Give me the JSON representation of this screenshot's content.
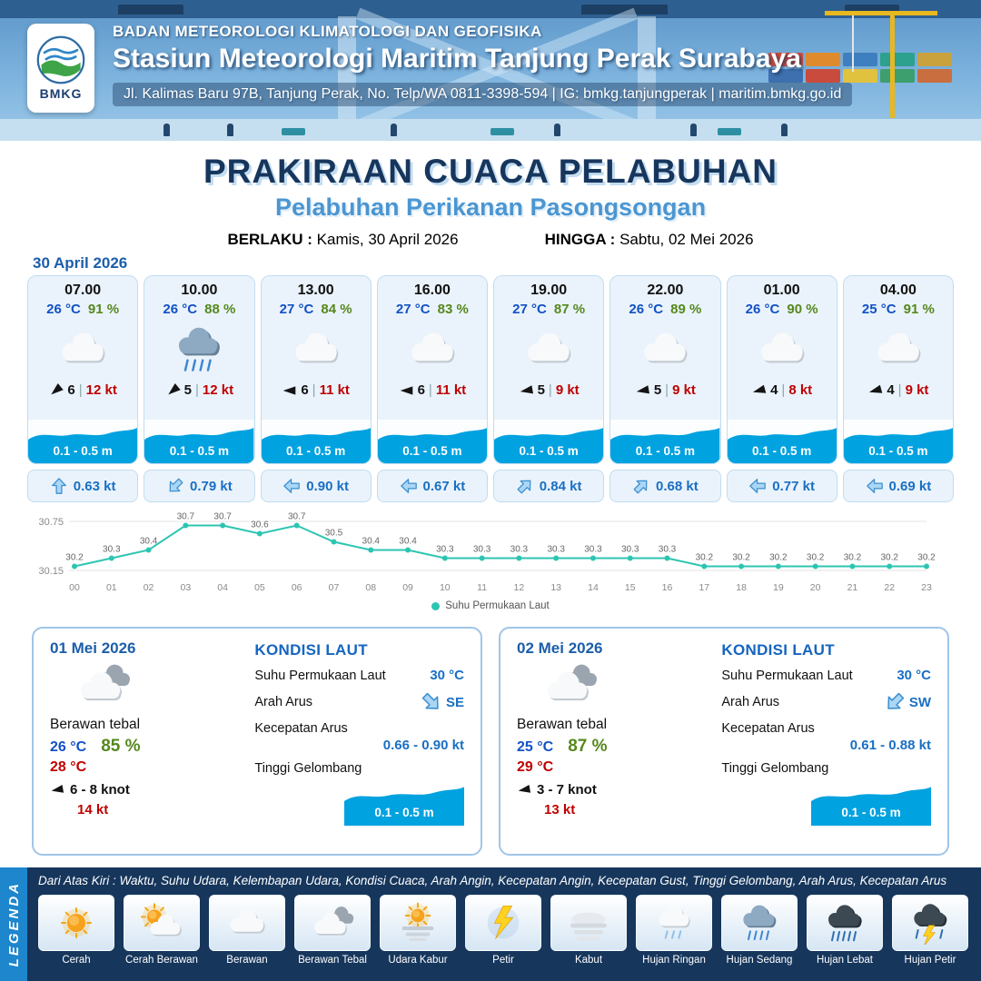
{
  "header": {
    "logo_label": "BMKG",
    "org": "BADAN METEOROLOGI KLIMATOLOGI DAN GEOFISIKA",
    "station": "Stasiun Meteorologi Maritim Tanjung Perak Surabaya",
    "address": "Jl. Kalimas Baru 97B, Tanjung Perak, No. Telp/WA 0811-3398-594 | IG: bmkg.tanjungperak | maritim.bmkg.go.id"
  },
  "title": {
    "main": "PRAKIRAAN CUACA PELABUHAN",
    "subtitle": "Pelabuhan Perikanan Pasongsongan",
    "valid_label": "BERLAKU :",
    "valid_value": "Kamis, 30 April 2026",
    "until_label": "HINGGA :",
    "until_value": "Sabtu, 02 Mei 2026"
  },
  "forecast": {
    "date": "30 April 2026",
    "cards": [
      {
        "time": "07.00",
        "temp": "26 °C",
        "humidity": "91 %",
        "icon": "berawan",
        "wind_rot": -40,
        "wind_speed": "6",
        "gust": "12 kt",
        "wave": "0.1 - 0.5 m",
        "current_rot": 0,
        "current": "0.63 kt"
      },
      {
        "time": "10.00",
        "temp": "26 °C",
        "humidity": "88 %",
        "icon": "hujan-sedang",
        "wind_rot": -40,
        "wind_speed": "5",
        "gust": "12 kt",
        "wave": "0.1 - 0.5 m",
        "current_rot": 225,
        "current": "0.79 kt"
      },
      {
        "time": "13.00",
        "temp": "27 °C",
        "humidity": "84 %",
        "icon": "berawan",
        "wind_rot": 0,
        "wind_speed": "6",
        "gust": "11 kt",
        "wave": "0.1 - 0.5 m",
        "current_rot": 270,
        "current": "0.90 kt"
      },
      {
        "time": "16.00",
        "temp": "27 °C",
        "humidity": "83 %",
        "icon": "berawan",
        "wind_rot": 0,
        "wind_speed": "6",
        "gust": "11 kt",
        "wave": "0.1 - 0.5 m",
        "current_rot": 270,
        "current": "0.67 kt"
      },
      {
        "time": "19.00",
        "temp": "27 °C",
        "humidity": "87 %",
        "icon": "berawan",
        "wind_rot": -10,
        "wind_speed": "5",
        "gust": "9 kt",
        "wave": "0.1 - 0.5 m",
        "current_rot": 45,
        "current": "0.84 kt"
      },
      {
        "time": "22.00",
        "temp": "26 °C",
        "humidity": "89 %",
        "icon": "berawan",
        "wind_rot": -10,
        "wind_speed": "5",
        "gust": "9 kt",
        "wave": "0.1 - 0.5 m",
        "current_rot": 45,
        "current": "0.68 kt"
      },
      {
        "time": "01.00",
        "temp": "26 °C",
        "humidity": "90 %",
        "icon": "berawan",
        "wind_rot": -15,
        "wind_speed": "4",
        "gust": "8 kt",
        "wave": "0.1 - 0.5 m",
        "current_rot": 270,
        "current": "0.77 kt"
      },
      {
        "time": "04.00",
        "temp": "25 °C",
        "humidity": "91 %",
        "icon": "berawan",
        "wind_rot": -15,
        "wind_speed": "4",
        "gust": "9 kt",
        "wave": "0.1 - 0.5 m",
        "current_rot": 270,
        "current": "0.69 kt"
      }
    ]
  },
  "chart_data": {
    "type": "line",
    "series_name": "Suhu Permukaan Laut",
    "x": [
      "00",
      "01",
      "02",
      "03",
      "04",
      "05",
      "06",
      "07",
      "08",
      "09",
      "10",
      "11",
      "12",
      "13",
      "14",
      "15",
      "16",
      "17",
      "18",
      "19",
      "20",
      "21",
      "22",
      "23"
    ],
    "values": [
      30.2,
      30.3,
      30.4,
      30.7,
      30.7,
      30.6,
      30.7,
      30.5,
      30.4,
      30.4,
      30.3,
      30.3,
      30.3,
      30.3,
      30.3,
      30.3,
      30.3,
      30.2,
      30.2,
      30.2,
      30.2,
      30.2,
      30.2,
      30.2
    ],
    "ylim": [
      30.15,
      30.75
    ],
    "color": "#2cc5b2",
    "grid": true,
    "legend_position": "bottom"
  },
  "days": [
    {
      "date": "01 Mei 2026",
      "icon": "berawan-tebal",
      "condition": "Berawan tebal",
      "temp_min": "26 °C",
      "humidity": "85 %",
      "temp_max": "28 °C",
      "wind_rot": -10,
      "wind": "6 - 8 knot",
      "gust": "14 kt",
      "sea": {
        "title": "KONDISI LAUT",
        "sst_label": "Suhu Permukaan Laut",
        "sst": "30 °C",
        "dir_label": "Arah Arus",
        "dir": "SE",
        "dir_rot": 135,
        "speed_label": "Kecepatan Arus",
        "speed": "0.66 - 0.90 kt",
        "wave_label": "Tinggi Gelombang",
        "wave": "0.1 - 0.5 m"
      }
    },
    {
      "date": "02 Mei 2026",
      "icon": "berawan-tebal",
      "condition": "Berawan tebal",
      "temp_min": "25 °C",
      "humidity": "87 %",
      "temp_max": "29 °C",
      "wind_rot": -10,
      "wind": "3 - 7 knot",
      "gust": "13 kt",
      "sea": {
        "title": "KONDISI LAUT",
        "sst_label": "Suhu Permukaan Laut",
        "sst": "30 °C",
        "dir_label": "Arah Arus",
        "dir": "SW",
        "dir_rot": 225,
        "speed_label": "Kecepatan Arus",
        "speed": "0.61 - 0.88 kt",
        "wave_label": "Tinggi Gelombang",
        "wave": "0.1 - 0.5 m"
      }
    }
  ],
  "legend": {
    "label": "LEGENDA",
    "description": "Dari Atas Kiri : Waktu, Suhu Udara, Kelembapan Udara, Kondisi Cuaca, Arah Angin, Kecepatan Angin, Kecepatan Gust, Tinggi Gelombang, Arah Arus, Kecepatan Arus",
    "items": [
      {
        "label": "Cerah",
        "icon": "cerah"
      },
      {
        "label": "Cerah Berawan",
        "icon": "cerah-berawan"
      },
      {
        "label": "Berawan",
        "icon": "berawan"
      },
      {
        "label": "Berawan Tebal",
        "icon": "berawan-tebal"
      },
      {
        "label": "Udara Kabur",
        "icon": "udara-kabur"
      },
      {
        "label": "Petir",
        "icon": "petir"
      },
      {
        "label": "Kabut",
        "icon": "kabut"
      },
      {
        "label": "Hujan Ringan",
        "icon": "hujan-ringan"
      },
      {
        "label": "Hujan Sedang",
        "icon": "hujan-sedang"
      },
      {
        "label": "Hujan Lebat",
        "icon": "hujan-lebat"
      },
      {
        "label": "Hujan Petir",
        "icon": "hujan-petir"
      }
    ]
  }
}
